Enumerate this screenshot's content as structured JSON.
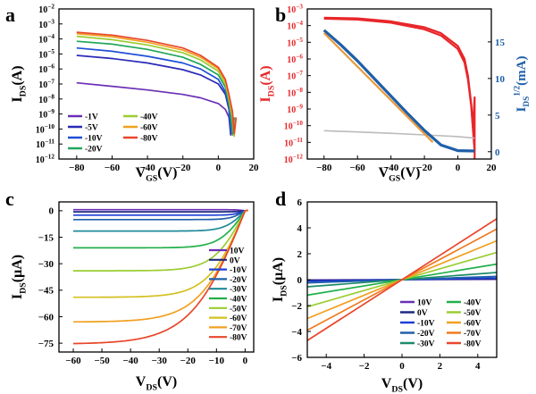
{
  "chart_data": [
    {
      "panel": "a",
      "type": "line",
      "xlabel": "V",
      "xlabel_sub": "GS",
      "xlabel_unit": "(V)",
      "ylabel": "I",
      "ylabel_sub": "DS",
      "ylabel_unit": "(A)",
      "xlim": [
        -90,
        20
      ],
      "ylim_log10": [
        -12,
        -2
      ],
      "log_y": true,
      "xticks": [
        -80,
        -60,
        -40,
        -20,
        0,
        20
      ],
      "yticks": [
        -12,
        -11,
        -10,
        -9,
        -8,
        -7,
        -6,
        -5,
        -4,
        -3,
        -2
      ],
      "series": [
        {
          "name": "-1V",
          "color": "#6a2fb5",
          "x": [
            -80,
            -60,
            -40,
            -20,
            -10,
            0,
            4,
            6,
            7,
            8
          ],
          "y": [
            1.2e-07,
            7e-08,
            4e-08,
            2e-08,
            1.2e-08,
            5e-09,
            2e-09,
            6e-10,
            4e-11,
            4e-10
          ]
        },
        {
          "name": "-5V",
          "color": "#2a2ab8",
          "x": [
            -80,
            -60,
            -40,
            -20,
            -10,
            0,
            4,
            6,
            7,
            8
          ],
          "y": [
            8e-06,
            5e-06,
            2.5e-06,
            9e-07,
            4e-07,
            1e-07,
            2e-08,
            2e-09,
            5e-11,
            5e-10
          ]
        },
        {
          "name": "-10V",
          "color": "#1f4fd6",
          "x": [
            -80,
            -60,
            -40,
            -20,
            -10,
            0,
            4,
            6,
            7,
            8
          ],
          "y": [
            2.5e-05,
            1.5e-05,
            7e-06,
            2.5e-06,
            1e-06,
            2e-07,
            3e-08,
            3e-09,
            6e-11,
            6e-10
          ]
        },
        {
          "name": "-20V",
          "color": "#22a65a",
          "x": [
            -80,
            -60,
            -40,
            -20,
            -10,
            0,
            4,
            6,
            7,
            8,
            9
          ],
          "y": [
            7e-05,
            4.5e-05,
            2e-05,
            6e-06,
            2e-06,
            4e-07,
            6e-08,
            5e-09,
            1e-09,
            4e-11,
            6e-10
          ]
        },
        {
          "name": "-40V",
          "color": "#9acd32",
          "x": [
            -80,
            -60,
            -40,
            -20,
            -10,
            0,
            4,
            6,
            8,
            9
          ],
          "y": [
            0.00015,
            9e-05,
            4e-05,
            1.2e-05,
            4e-06,
            7e-07,
            1e-07,
            1e-08,
            5e-10,
            3e-11
          ]
        },
        {
          "name": "-60V",
          "color": "#f0a020",
          "x": [
            -80,
            -60,
            -40,
            -20,
            -10,
            0,
            4,
            6,
            8,
            9,
            10
          ],
          "y": [
            0.00022,
            0.00014,
            6e-05,
            1.8e-05,
            6e-06,
            1e-06,
            1.5e-07,
            1.5e-08,
            1e-09,
            4e-11,
            5e-10
          ]
        },
        {
          "name": "-80V",
          "color": "#e8462a",
          "x": [
            -80,
            -60,
            -40,
            -20,
            -10,
            0,
            4,
            6,
            8,
            9,
            10
          ],
          "y": [
            0.00028,
            0.00018,
            8e-05,
            2.5e-05,
            8e-06,
            1.3e-06,
            2e-07,
            2e-08,
            1.5e-09,
            5e-11,
            6e-10
          ]
        }
      ],
      "legend": [
        [
          "-1V",
          "-40V"
        ],
        [
          "-5V",
          "-60V"
        ],
        [
          "-10V",
          "-80V"
        ],
        [
          "-20V",
          ""
        ]
      ]
    },
    {
      "panel": "b",
      "type": "line",
      "xlabel": "V",
      "xlabel_sub": "GS",
      "xlabel_unit": "(V)",
      "ylabel": "I",
      "ylabel_sub": "DS",
      "ylabel_unit": "(A)",
      "ylabel_color": "#e8262a",
      "y2label": "I",
      "y2label_sub": "DS",
      "y2label_sup": "1/2",
      "y2label_unit": "(mA)",
      "y2label_color": "#1f5fa8",
      "xlim": [
        -90,
        20
      ],
      "ylim_log10": [
        -12,
        -3
      ],
      "y2lim": [
        -1,
        19.5
      ],
      "log_y": true,
      "xticks": [
        -80,
        -60,
        -40,
        -20,
        0,
        20
      ],
      "yticks": [
        -12,
        -11,
        -10,
        -9,
        -8,
        -7,
        -6,
        -5,
        -4,
        -3
      ],
      "y2ticks": [
        0,
        5,
        10,
        15
      ],
      "series": [
        {
          "name": "",
          "role": "forward",
          "color": "#e8262a",
          "x": [
            -80,
            -60,
            -40,
            -20,
            -10,
            0,
            4,
            6,
            8,
            9,
            10,
            10
          ],
          "y": [
            0.0003,
            0.00027,
            0.00018,
            8e-05,
            3.5e-05,
            6e-06,
            1e-06,
            1e-07,
            2e-09,
            8e-11,
            5e-09,
            1e-12
          ]
        },
        {
          "name": "",
          "role": "reverse",
          "color": "#e8262a",
          "x": [
            -80,
            -60,
            -40,
            -20,
            -10,
            0,
            4,
            6,
            8,
            9,
            10
          ],
          "y": [
            0.00026,
            0.00023,
            0.00015,
            6e-05,
            2.5e-05,
            4e-06,
            6e-07,
            6e-08,
            1.5e-09,
            6e-11,
            3e-12
          ]
        },
        {
          "name": "",
          "role": "gate",
          "color": "#bbbbbb",
          "x": [
            -80,
            -60,
            -40,
            -20,
            0,
            10
          ],
          "y": [
            5e-11,
            4.2e-11,
            3.5e-11,
            2.8e-11,
            2.2e-11,
            1.8e-11
          ]
        },
        {
          "name": "",
          "role": "sqrt",
          "axis": "y2",
          "color": "#1f5fa8",
          "x": [
            -80,
            -70,
            -60,
            -50,
            -40,
            -30,
            -20,
            -10,
            0,
            10
          ],
          "y": [
            16.6,
            14.6,
            12.4,
            10.0,
            7.6,
            5.2,
            2.9,
            0.9,
            0.15,
            0.1
          ]
        },
        {
          "name": "",
          "role": "fit",
          "axis": "y2",
          "color": "#e89a3a",
          "x": [
            -80,
            -15
          ],
          "y": [
            16.2,
            1.3
          ]
        }
      ]
    },
    {
      "panel": "c",
      "type": "line",
      "xlabel": "V",
      "xlabel_sub": "DS",
      "xlabel_unit": "(V)",
      "ylabel": "I",
      "ylabel_sub": "DS",
      "ylabel_unit": "(μA)",
      "xlim": [
        -65,
        3
      ],
      "ylim": [
        -80,
        5
      ],
      "xticks": [
        -60,
        -50,
        -40,
        -30,
        -20,
        -10,
        0
      ],
      "yticks": [
        0,
        -15,
        -30,
        -45,
        -60,
        -75
      ],
      "series": [
        {
          "name": "10V",
          "color": "#6a2fb5",
          "sat": 0.6,
          "v0": 3
        },
        {
          "name": "0V",
          "color": "#1e2a80",
          "sat": -0.6,
          "v0": 3
        },
        {
          "name": "-10V",
          "color": "#1f3fd6",
          "sat": -2.5,
          "v0": 4
        },
        {
          "name": "-20V",
          "color": "#1f5fa8",
          "sat": -5,
          "v0": 5
        },
        {
          "name": "-30V",
          "color": "#1f8a9a",
          "sat": -11.5,
          "v0": 7
        },
        {
          "name": "-40V",
          "color": "#22b04a",
          "sat": -21,
          "v0": 9
        },
        {
          "name": "-50V",
          "color": "#9acd32",
          "sat": -34,
          "v0": 11
        },
        {
          "name": "-60V",
          "color": "#d4c020",
          "sat": -49,
          "v0": 13
        },
        {
          "name": "-70V",
          "color": "#f0a020",
          "sat": -63,
          "v0": 16
        },
        {
          "name": "-80V",
          "color": "#e8462a",
          "sat": -75.5,
          "v0": 19
        }
      ]
    },
    {
      "panel": "d",
      "type": "line",
      "xlabel": "V",
      "xlabel_sub": "DS",
      "xlabel_unit": "(V)",
      "ylabel": "I",
      "ylabel_sub": "DS",
      "ylabel_unit": "(μA)",
      "xlim": [
        -5,
        5
      ],
      "ylim": [
        -6,
        6
      ],
      "xticks": [
        -4,
        -2,
        0,
        2,
        4
      ],
      "yticks": [
        -6,
        -4,
        -2,
        0,
        2,
        4,
        6
      ],
      "series": [
        {
          "name": "10V",
          "color": "#6a2fb5",
          "slope": 0.004
        },
        {
          "name": "0V",
          "color": "#1e2a80",
          "slope": 0.012
        },
        {
          "name": "-10V",
          "color": "#1f3fd6",
          "slope": 0.025
        },
        {
          "name": "-20V",
          "color": "#1f5fa8",
          "slope": 0.05
        },
        {
          "name": "-30V",
          "color": "#1f8a6a",
          "slope": 0.11
        },
        {
          "name": "-40V",
          "color": "#22b04a",
          "slope": 0.24
        },
        {
          "name": "-50V",
          "color": "#9acd32",
          "slope": 0.42
        },
        {
          "name": "-60V",
          "color": "#f0a020",
          "slope": 0.6
        },
        {
          "name": "-70V",
          "color": "#f07a20",
          "slope": 0.78
        },
        {
          "name": "-80V",
          "color": "#e8462a",
          "slope": 0.94
        }
      ],
      "legend": [
        [
          "10V",
          "-40V"
        ],
        [
          "0V",
          "-50V"
        ],
        [
          "-10V",
          "-60V"
        ],
        [
          "-20V",
          "-70V"
        ],
        [
          "-30V",
          "-80V"
        ]
      ]
    }
  ]
}
